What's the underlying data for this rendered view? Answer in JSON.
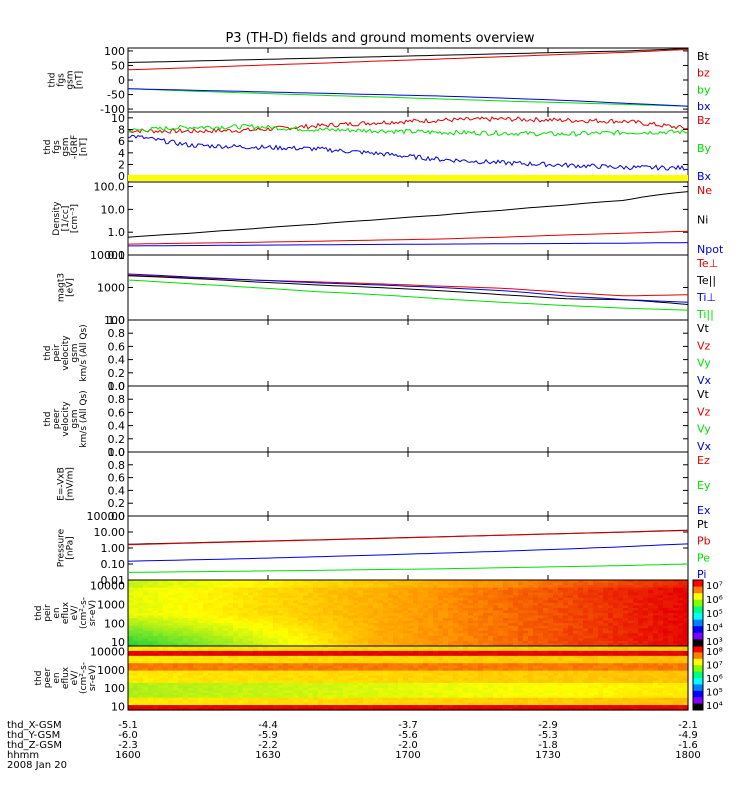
{
  "title": "P3 (TH-D) fields and ground moments overview",
  "colors": {
    "black": "#000000",
    "red": "#e00000",
    "green": "#00e000",
    "blue": "#0000e0",
    "yellow": "#ffff00"
  },
  "chart_data": [
    {
      "type": "line",
      "ylabel": [
        "thd",
        "fgs",
        "gsm",
        "[nT]"
      ],
      "yticks": [
        "100",
        "50",
        "0",
        "-50",
        "-100"
      ],
      "ylim": [
        -110,
        110
      ],
      "series": [
        {
          "name": "Bt",
          "color": "black",
          "values": [
            60,
            65,
            70,
            75,
            80,
            85,
            90,
            95,
            100,
            108
          ]
        },
        {
          "name": "bz",
          "color": "red",
          "values": [
            35,
            42,
            50,
            57,
            65,
            72,
            80,
            88,
            95,
            105
          ]
        },
        {
          "name": "by",
          "color": "green",
          "values": [
            -30,
            -38,
            -45,
            -52,
            -58,
            -65,
            -72,
            -78,
            -84,
            -90
          ]
        },
        {
          "name": "bx",
          "color": "blue",
          "values": [
            -30,
            -35,
            -40,
            -45,
            -50,
            -55,
            -62,
            -70,
            -80,
            -90
          ]
        }
      ]
    },
    {
      "type": "line",
      "ylabel": [
        "thd",
        "fgs",
        "gsm",
        "-IGRF",
        "[nT]"
      ],
      "yticks": [
        "10",
        "8",
        "6",
        "4",
        "2",
        "0"
      ],
      "ylim": [
        -1,
        11
      ],
      "series": [
        {
          "name": "Bz",
          "color": "red",
          "values": [
            7.8,
            7.7,
            7.9,
            8.6,
            9.2,
            9.6,
            9.8,
            9.6,
            9.4,
            8.2
          ]
        },
        {
          "name": "By",
          "color": "green",
          "values": [
            7.8,
            8.4,
            8.5,
            8.0,
            7.8,
            7.5,
            7.4,
            7.2,
            7.5,
            7.6
          ]
        },
        {
          "name": "Bx",
          "color": "blue",
          "values": [
            7.0,
            5.3,
            5.0,
            4.7,
            3.9,
            2.9,
            2.3,
            1.9,
            1.5,
            1.4
          ]
        }
      ]
    },
    {
      "type": "log-line",
      "ylabel": [
        "Density",
        "[1/cc]",
        "[cm⁻³]"
      ],
      "yticks": [
        "100.0",
        "10.0",
        "1.0",
        "0.1"
      ],
      "ylim_log": [
        -1,
        2.2
      ],
      "series": [
        {
          "name": "Ne",
          "color": "red",
          "values": [
            0.3,
            0.33,
            0.36,
            0.4,
            0.45,
            0.5,
            0.6,
            0.75,
            0.9,
            1.1
          ]
        },
        {
          "name": "Ni",
          "color": "black",
          "values": [
            0.6,
            0.9,
            1.4,
            2.2,
            3.5,
            5.5,
            9,
            15,
            25,
            60
          ]
        },
        {
          "name": "Npot",
          "color": "blue",
          "values": [
            0.25,
            0.26,
            0.27,
            0.28,
            0.29,
            0.3,
            0.31,
            0.32,
            0.33,
            0.35
          ]
        }
      ]
    },
    {
      "type": "log-line",
      "ylabel": [
        "magt3",
        "[eV]"
      ],
      "yticks": [
        "10000",
        "1000",
        "100"
      ],
      "ylim_log": [
        2,
        4
      ],
      "series": [
        {
          "name": "Te⊥",
          "color": "red",
          "values": [
            2400,
            2000,
            1700,
            1500,
            1300,
            1100,
            950,
            700,
            550,
            600
          ]
        },
        {
          "name": "Te||",
          "color": "black",
          "values": [
            2300,
            1900,
            1500,
            1200,
            1000,
            800,
            600,
            450,
            420,
            300
          ]
        },
        {
          "name": "Ti⊥",
          "color": "blue",
          "values": [
            2600,
            2100,
            1700,
            1400,
            1200,
            1000,
            800,
            550,
            420,
            350
          ]
        },
        {
          "name": "Ti||",
          "color": "green",
          "values": [
            1700,
            1300,
            1000,
            750,
            600,
            450,
            350,
            280,
            230,
            200
          ]
        }
      ]
    },
    {
      "type": "line",
      "ylabel": [
        "thd",
        "peir",
        "velocity",
        "gsm",
        "km/s (All Qs)"
      ],
      "yticks": [
        "1.0",
        "0.8",
        "0.6",
        "0.4",
        "0.2",
        "0.0"
      ],
      "ylim": [
        0,
        1
      ],
      "series": [
        {
          "name": "Vt",
          "color": "black",
          "values": []
        },
        {
          "name": "Vz",
          "color": "red",
          "values": []
        },
        {
          "name": "Vy",
          "color": "green",
          "values": []
        },
        {
          "name": "Vx",
          "color": "blue",
          "values": []
        }
      ]
    },
    {
      "type": "line",
      "ylabel": [
        "thd",
        "peer",
        "velocity",
        "gsm",
        "km/s (All Qs)"
      ],
      "yticks": [
        "1.0",
        "0.8",
        "0.6",
        "0.4",
        "0.2",
        "0.0"
      ],
      "ylim": [
        0,
        1
      ],
      "series": [
        {
          "name": "Vt",
          "color": "black",
          "values": []
        },
        {
          "name": "Vz",
          "color": "red",
          "values": []
        },
        {
          "name": "Vy",
          "color": "green",
          "values": []
        },
        {
          "name": "Vx",
          "color": "blue",
          "values": []
        }
      ]
    },
    {
      "type": "line",
      "ylabel": [
        "E=-VxB",
        "[mV/m]"
      ],
      "yticks": [
        "1.0",
        "0.8",
        "0.6",
        "0.4",
        "0.2",
        "0.0"
      ],
      "ylim": [
        0,
        1
      ],
      "series": [
        {
          "name": "Ez",
          "color": "red",
          "values": []
        },
        {
          "name": "Ey",
          "color": "green",
          "values": []
        },
        {
          "name": "Ex",
          "color": "blue",
          "values": []
        }
      ]
    },
    {
      "type": "log-line",
      "ylabel": [
        "Pressure",
        "[nPa]"
      ],
      "yticks": [
        "100.00",
        "10.00",
        "1.00",
        "0.10",
        "0.01"
      ],
      "ylim_log": [
        -2,
        2
      ],
      "series": [
        {
          "name": "Pt",
          "color": "black",
          "values": [
            1.7,
            2.1,
            2.6,
            3.2,
            4.0,
            5.0,
            6.3,
            8.0,
            10,
            13
          ]
        },
        {
          "name": "Pb",
          "color": "red",
          "values": [
            1.6,
            2.0,
            2.5,
            3.1,
            3.9,
            4.9,
            6.2,
            7.8,
            9.8,
            12.5
          ]
        },
        {
          "name": "Pe",
          "color": "green",
          "values": [
            0.03,
            0.033,
            0.036,
            0.04,
            0.045,
            0.05,
            0.058,
            0.068,
            0.08,
            0.1
          ]
        },
        {
          "name": "Pi",
          "color": "blue",
          "values": [
            0.15,
            0.18,
            0.22,
            0.28,
            0.36,
            0.47,
            0.62,
            0.85,
            1.2,
            1.8
          ]
        }
      ]
    },
    {
      "type": "heatmap",
      "ylabel": [
        "thd",
        "peir",
        "en",
        "eflux",
        "eV/",
        "(cm²-s-",
        "sr-eV)"
      ],
      "yticks": [
        "10000",
        "1000",
        "100",
        "10"
      ],
      "colorbar_ticks": [
        "10⁷",
        "10⁶",
        "10⁵",
        "10⁴",
        "10³"
      ]
    },
    {
      "type": "heatmap",
      "ylabel": [
        "thd",
        "peer",
        "en",
        "eflux",
        "eV/",
        "(cm²-s-",
        "sr-eV)"
      ],
      "yticks": [
        "10000",
        "1000",
        "100",
        "10"
      ],
      "colorbar_ticks": [
        "10⁸",
        "10⁷",
        "10⁶",
        "10⁵",
        "10⁴"
      ]
    }
  ],
  "xaxis": {
    "rows": [
      {
        "label": "thd_X-GSM",
        "values": [
          "-5.1",
          "-4.4",
          "-3.7",
          "-2.9",
          "-2.1"
        ]
      },
      {
        "label": "thd_Y-GSM",
        "values": [
          "-6.0",
          "-5.9",
          "-5.6",
          "-5.3",
          "-4.9"
        ]
      },
      {
        "label": "thd_Z-GSM",
        "values": [
          "-2.3",
          "-2.2",
          "-2.0",
          "-1.8",
          "-1.6"
        ]
      },
      {
        "label": "hhmm",
        "values": [
          "1600",
          "1630",
          "1700",
          "1730",
          "1800"
        ]
      }
    ],
    "date": "2008 Jan 20"
  }
}
